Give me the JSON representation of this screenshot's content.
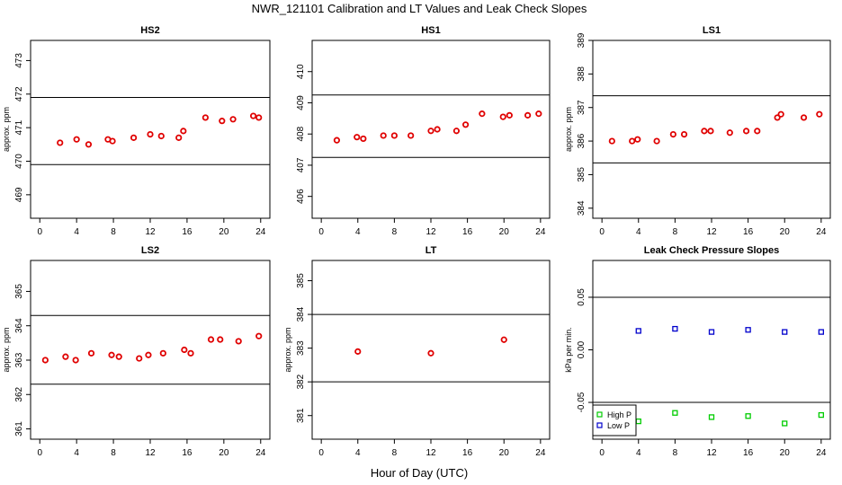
{
  "title": "NWR_121101  Calibration and LT Values and Leak Check Slopes",
  "xlabel": "Hour of Day (UTC)",
  "chart_data": [
    {
      "type": "scatter",
      "title": "HS2",
      "ylabel": "approx. ppm",
      "xlim": [
        -1,
        25
      ],
      "ylim": [
        468.3,
        473.6
      ],
      "xticks": [
        0,
        4,
        8,
        12,
        16,
        20,
        24
      ],
      "yticks": [
        469,
        470,
        471,
        472,
        473
      ],
      "hlines": [
        469.9,
        471.9
      ],
      "series": [
        {
          "color": "#e00000",
          "x": [
            2.2,
            4.0,
            5.3,
            7.4,
            7.9,
            10.2,
            12.0,
            13.2,
            15.1,
            15.6,
            18.0,
            19.8,
            21.0,
            23.2,
            23.8
          ],
          "y": [
            470.55,
            470.65,
            470.5,
            470.65,
            470.6,
            470.7,
            470.8,
            470.75,
            470.7,
            470.9,
            471.3,
            471.2,
            471.25,
            471.35,
            471.3
          ]
        }
      ]
    },
    {
      "type": "scatter",
      "title": "HS1",
      "ylabel": "",
      "xlim": [
        -1,
        25
      ],
      "ylim": [
        405.3,
        411.0
      ],
      "xticks": [
        0,
        4,
        8,
        12,
        16,
        20,
        24
      ],
      "yticks": [
        406,
        407,
        408,
        409,
        410
      ],
      "hlines": [
        407.25,
        409.25
      ],
      "series": [
        {
          "color": "#e00000",
          "x": [
            1.7,
            3.9,
            4.6,
            6.8,
            8.0,
            9.8,
            12.0,
            12.7,
            14.8,
            15.8,
            17.6,
            19.9,
            20.6,
            22.6,
            23.8
          ],
          "y": [
            407.8,
            407.9,
            407.85,
            407.95,
            407.95,
            407.95,
            408.1,
            408.15,
            408.1,
            408.3,
            408.65,
            408.55,
            408.6,
            408.6,
            408.65
          ]
        }
      ]
    },
    {
      "type": "scatter",
      "title": "LS1",
      "ylabel": "approx. ppm",
      "xlim": [
        -1,
        25
      ],
      "ylim": [
        383.7,
        389.0
      ],
      "xticks": [
        0,
        4,
        8,
        12,
        16,
        20,
        24
      ],
      "yticks": [
        384,
        385,
        386,
        387,
        388,
        389
      ],
      "hlines": [
        385.35,
        387.35
      ],
      "series": [
        {
          "color": "#e00000",
          "x": [
            1.1,
            3.3,
            3.9,
            6.0,
            7.8,
            9.0,
            11.2,
            11.9,
            14.0,
            15.8,
            17.0,
            19.2,
            19.6,
            22.1,
            23.8
          ],
          "y": [
            386.0,
            386.0,
            386.05,
            386.0,
            386.2,
            386.2,
            386.3,
            386.3,
            386.25,
            386.3,
            386.3,
            386.7,
            386.8,
            386.7,
            386.8
          ]
        }
      ]
    },
    {
      "type": "scatter",
      "title": "LS2",
      "ylabel": "approx. ppm",
      "xlim": [
        -1,
        25
      ],
      "ylim": [
        360.7,
        365.9
      ],
      "xticks": [
        0,
        4,
        8,
        12,
        16,
        20,
        24
      ],
      "yticks": [
        361,
        362,
        363,
        364,
        365
      ],
      "hlines": [
        362.3,
        364.3
      ],
      "series": [
        {
          "color": "#e00000",
          "x": [
            0.6,
            2.8,
            3.9,
            5.6,
            7.8,
            8.6,
            10.8,
            11.8,
            13.4,
            15.7,
            16.4,
            18.6,
            19.6,
            21.6,
            23.8
          ],
          "y": [
            363.0,
            363.1,
            363.0,
            363.2,
            363.15,
            363.1,
            363.05,
            363.15,
            363.2,
            363.3,
            363.2,
            363.6,
            363.6,
            363.55,
            363.7
          ]
        }
      ]
    },
    {
      "type": "scatter",
      "title": "LT",
      "ylabel": "approx. ppm",
      "xlim": [
        -1,
        25
      ],
      "ylim": [
        380.3,
        385.6
      ],
      "xticks": [
        0,
        4,
        8,
        12,
        16,
        20,
        24
      ],
      "yticks": [
        381,
        382,
        383,
        384,
        385
      ],
      "hlines": [
        382.0,
        384.0
      ],
      "series": [
        {
          "color": "#e00000",
          "x": [
            4.0,
            12.0,
            20.0
          ],
          "y": [
            382.9,
            382.85,
            383.25
          ]
        }
      ]
    },
    {
      "type": "scatter",
      "title": "Leak Check Pressure Slopes",
      "ylabel": "kPa per min.",
      "xlim": [
        -1,
        25
      ],
      "ylim": [
        -0.085,
        0.085
      ],
      "xticks": [
        0,
        4,
        8,
        12,
        16,
        20,
        24
      ],
      "yticks": [
        -0.05,
        0.0,
        0.05
      ],
      "ytick_labels": [
        "-0.05",
        "0.00",
        "0.05"
      ],
      "hlines": [
        -0.05,
        0.05
      ],
      "legend": {
        "position": "bottom-left"
      },
      "series": [
        {
          "name": "High P",
          "color": "#00cc00",
          "x": [
            4,
            8,
            12,
            16,
            20,
            24
          ],
          "y": [
            -0.068,
            -0.06,
            -0.064,
            -0.063,
            -0.07,
            -0.062
          ]
        },
        {
          "name": "Low P",
          "color": "#0000cc",
          "x": [
            4,
            8,
            12,
            16,
            20,
            24
          ],
          "y": [
            0.018,
            0.02,
            0.017,
            0.019,
            0.017,
            0.017
          ]
        }
      ]
    }
  ]
}
